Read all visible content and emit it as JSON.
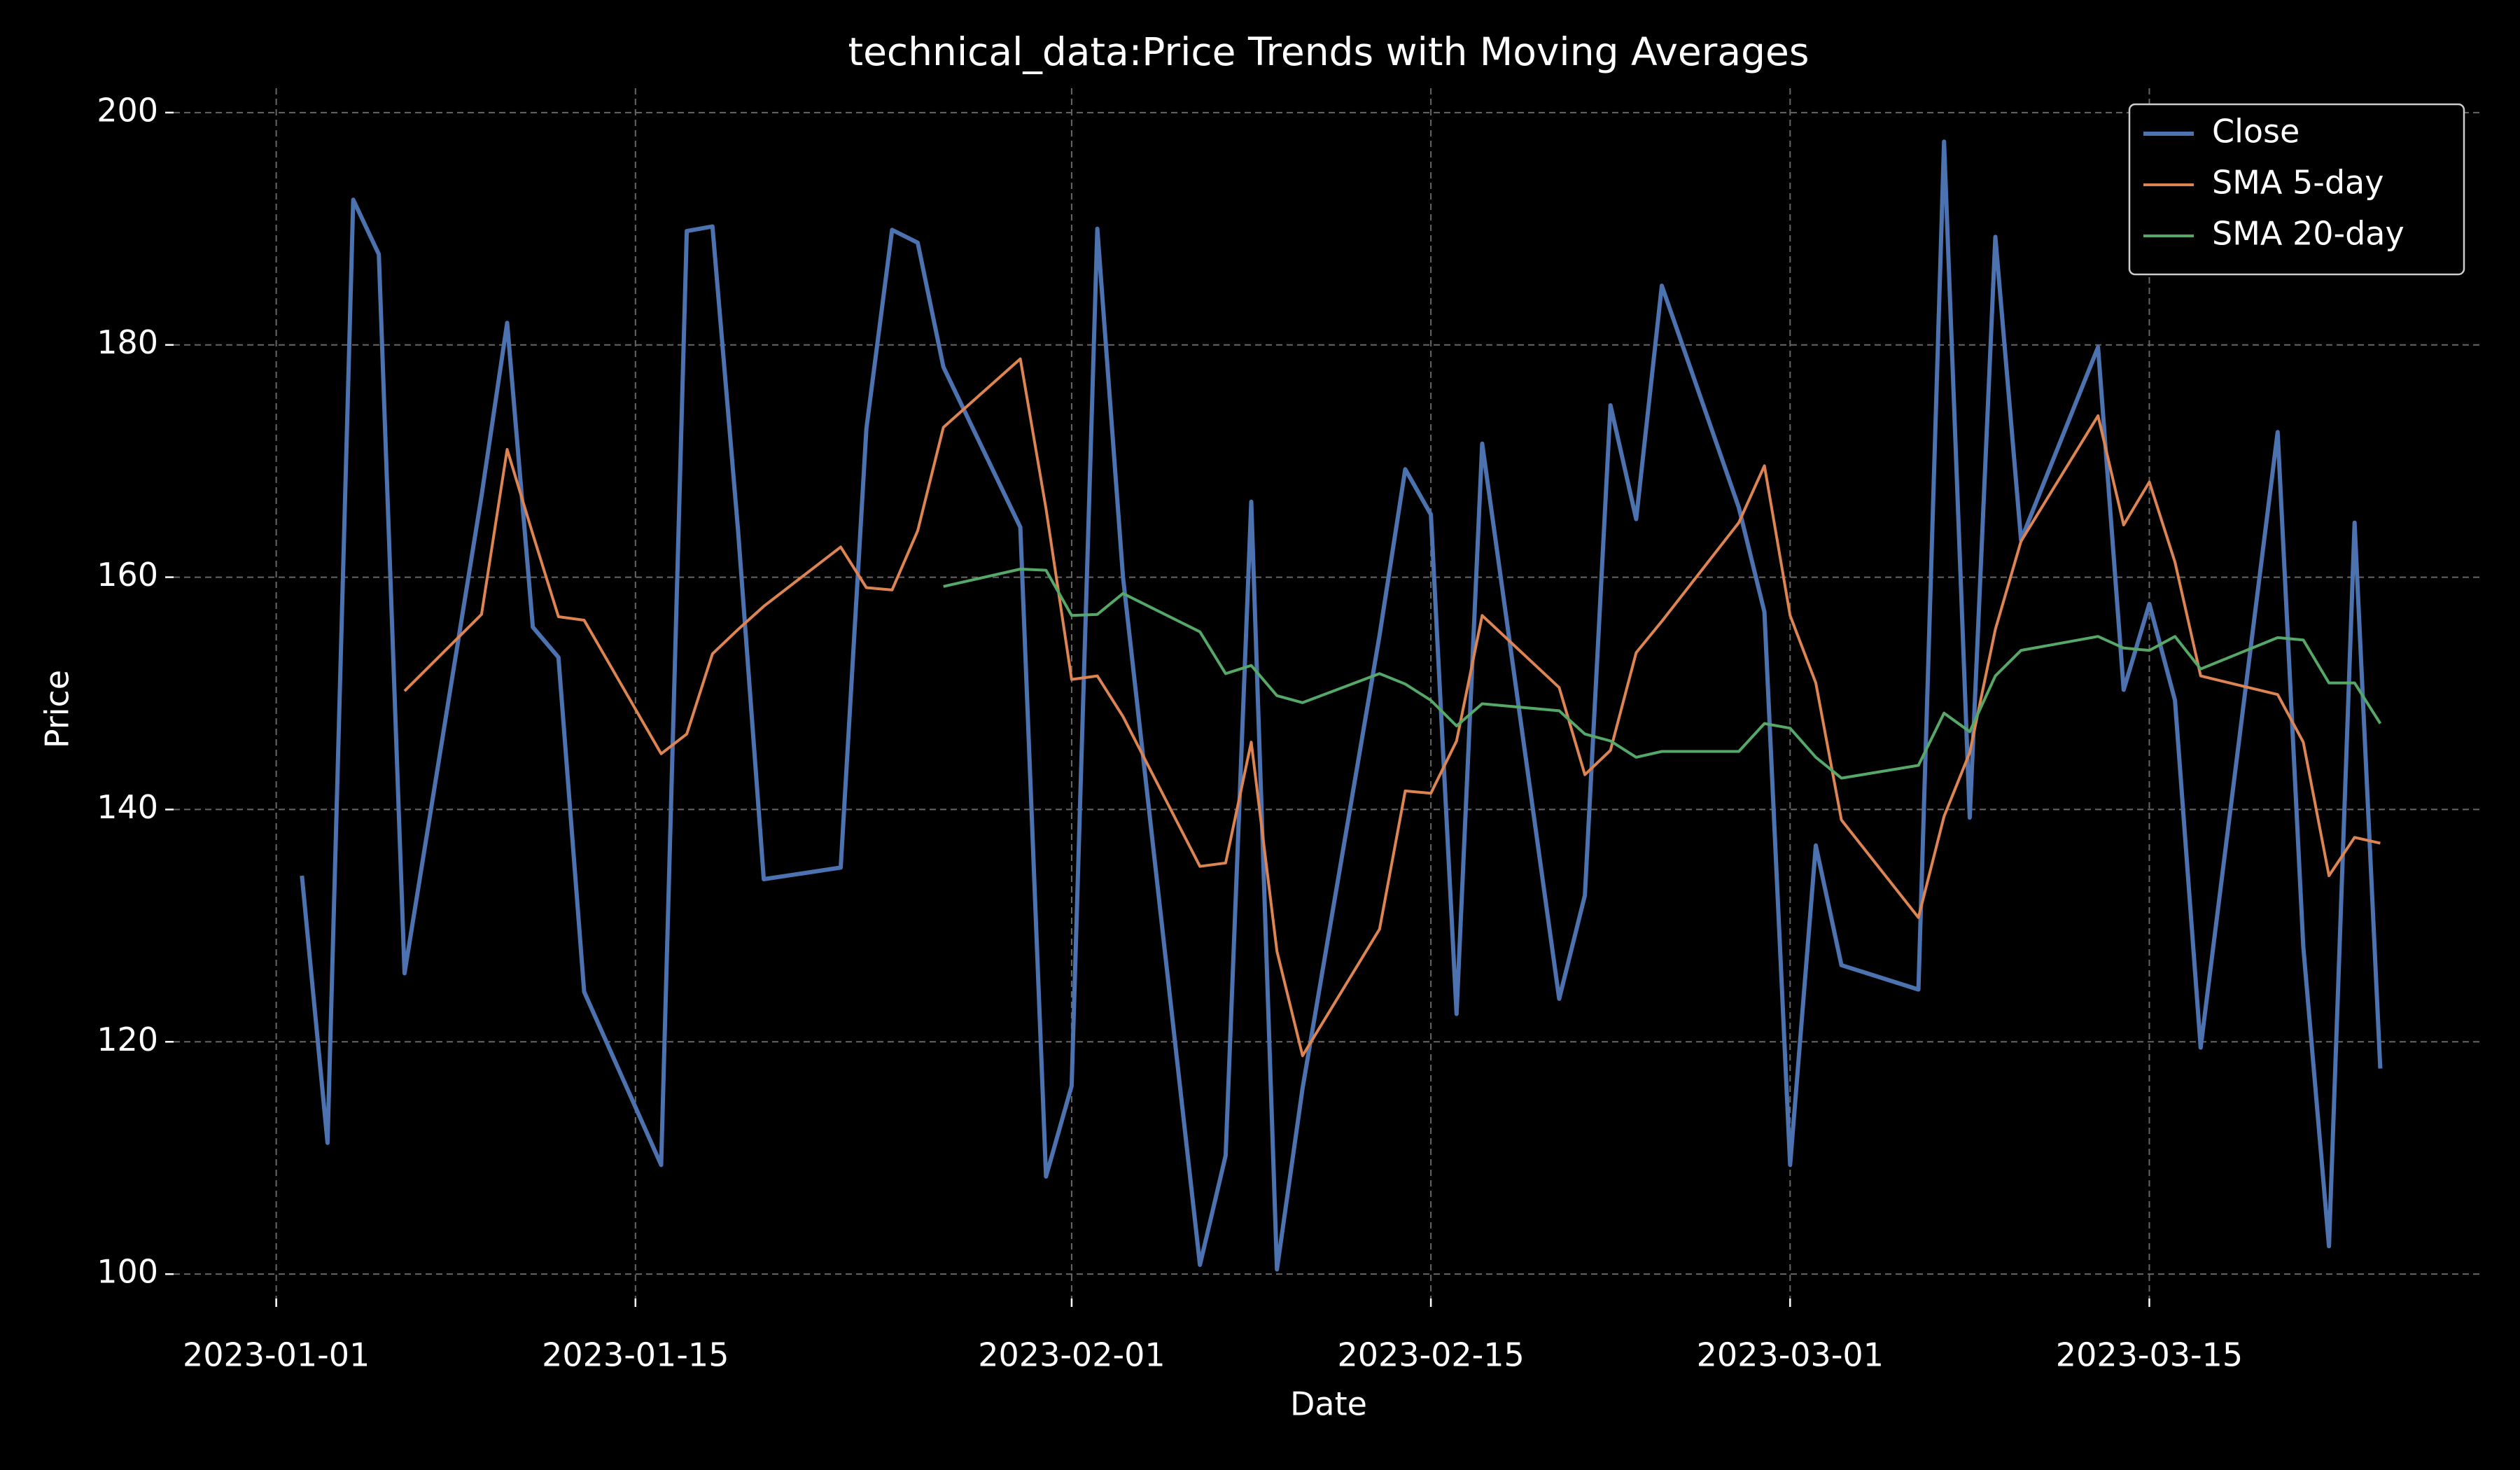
{
  "chart_data": {
    "type": "line",
    "title": "technical_data:Price Trends with Moving Averages",
    "x_label": "Date",
    "y_label": "Price",
    "x": [
      "2023-01-02",
      "2023-01-03",
      "2023-01-04",
      "2023-01-05",
      "2023-01-06",
      "2023-01-09",
      "2023-01-10",
      "2023-01-11",
      "2023-01-12",
      "2023-01-13",
      "2023-01-16",
      "2023-01-17",
      "2023-01-18",
      "2023-01-19",
      "2023-01-20",
      "2023-01-23",
      "2023-01-24",
      "2023-01-25",
      "2023-01-26",
      "2023-01-27",
      "2023-01-30",
      "2023-01-31",
      "2023-02-01",
      "2023-02-02",
      "2023-02-03",
      "2023-02-06",
      "2023-02-07",
      "2023-02-08",
      "2023-02-09",
      "2023-02-10",
      "2023-02-13",
      "2023-02-14",
      "2023-02-15",
      "2023-02-16",
      "2023-02-17",
      "2023-02-20",
      "2023-02-21",
      "2023-02-22",
      "2023-02-23",
      "2023-02-24",
      "2023-02-27",
      "2023-02-28",
      "2023-03-01",
      "2023-03-02",
      "2023-03-03",
      "2023-03-06",
      "2023-03-07",
      "2023-03-08",
      "2023-03-09",
      "2023-03-10",
      "2023-03-13",
      "2023-03-14",
      "2023-03-15",
      "2023-03-16",
      "2023-03-17",
      "2023-03-20",
      "2023-03-21",
      "2023-03-22",
      "2023-03-23",
      "2023-03-24"
    ],
    "series": [
      {
        "name": "Close",
        "color": "#4c72b0",
        "values": [
          134.3,
          111.3,
          192.5,
          187.8,
          125.9,
          167,
          181.9,
          155.7,
          153.1,
          124.3,
          109.4,
          189.8,
          190.2,
          164,
          134,
          135,
          172.8,
          189.9,
          188.8,
          178.1,
          164.3,
          108.4,
          116.2,
          190,
          160,
          100.8,
          110.2,
          166.5,
          100.4,
          116,
          155,
          169.3,
          165.4,
          122.4,
          171.5,
          123.7,
          132.6,
          174.8,
          165,
          185.1,
          166,
          157,
          109.4,
          136.9,
          126.6,
          124.5,
          197.5,
          139.3,
          189.3,
          163.2,
          179.8,
          150.3,
          157.7,
          149.4,
          119.5,
          172.5,
          128.2,
          102.4,
          164.7,
          117.7
        ]
      },
      {
        "name": "SMA 5-day",
        "color": "#dd8452",
        "values": [
          null,
          null,
          null,
          null,
          150.2,
          156.8,
          171,
          163.7,
          156.6,
          156.3,
          144.8,
          146.5,
          153.4,
          155.5,
          157.5,
          162.6,
          159.1,
          158.9,
          164,
          172.9,
          178.8,
          165.9,
          151.2,
          151.5,
          148,
          135.1,
          135.4,
          145.8,
          127.8,
          118.8,
          129.7,
          141.6,
          141.4,
          145.9,
          156.7,
          150.5,
          143,
          145.1,
          153.5,
          156.2,
          164.7,
          169.6,
          156.7,
          150.9,
          139.1,
          130.7,
          139.4,
          144.9,
          155.5,
          163.1,
          173.9,
          164.5,
          168.2,
          161.3,
          151.5,
          149.9,
          145.8,
          134.3,
          137.6,
          137.1
        ]
      },
      {
        "name": "SMA 20-day",
        "color": "#55a868",
        "values": [
          null,
          null,
          null,
          null,
          null,
          null,
          null,
          null,
          null,
          null,
          null,
          null,
          null,
          null,
          null,
          null,
          null,
          null,
          null,
          159.2,
          160.7,
          160.6,
          156.7,
          156.8,
          158.6,
          155.3,
          151.7,
          152.4,
          149.8,
          149.2,
          151.7,
          150.8,
          149.4,
          147.2,
          149.1,
          148.5,
          146.5,
          145.9,
          144.5,
          145,
          145,
          147.4,
          147,
          144.5,
          142.7,
          143.8,
          148.3,
          146.7,
          151.5,
          153.7,
          154.9,
          153.9,
          153.7,
          154.9,
          152.1,
          154.8,
          154.6,
          150.9,
          150.9,
          147.4
        ]
      }
    ],
    "xlim": [
      "2022-12-28",
      "2023-03-28"
    ],
    "xticks": [
      "2023-01-01",
      "2023-01-15",
      "2023-02-01",
      "2023-02-15",
      "2023-03-01",
      "2023-03-15"
    ],
    "ylim": [
      97.9,
      202.1
    ],
    "yticks": [
      100,
      120,
      140,
      160,
      180,
      200
    ],
    "grid": true,
    "legend": "upper right"
  }
}
